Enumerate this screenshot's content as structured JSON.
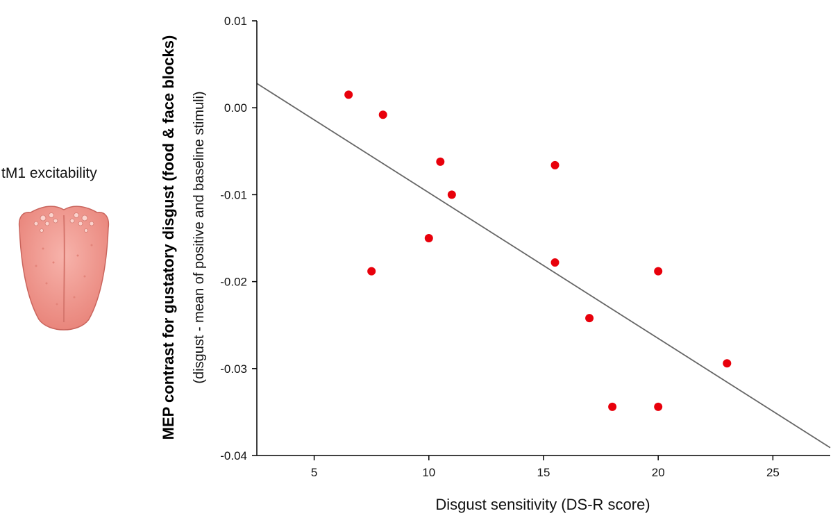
{
  "panel_label": "tM1 excitability",
  "icons": {
    "illustration": "tongue-icon"
  },
  "colors": {
    "points": "#e8000b",
    "fit_line": "#666666",
    "axis": "#000000",
    "tongue": "#f08c84"
  },
  "chart_data": {
    "type": "scatter",
    "xlabel": "Disgust sensitivity (DS-R score)",
    "ylabel": "MEP contrast for gustatory disgust (food & face blocks)",
    "ylabel_sub": "(disgust - mean of positive and baseline stimuli)",
    "xlim": [
      2.5,
      27.5
    ],
    "ylim": [
      -0.04,
      0.01
    ],
    "x_ticks": [
      5,
      10,
      15,
      20,
      25
    ],
    "x_tick_labels": [
      "5",
      "10",
      "15",
      "20",
      "25"
    ],
    "y_ticks": [
      0.01,
      0.0,
      -0.01,
      -0.02,
      -0.03,
      -0.04
    ],
    "y_tick_labels": [
      "0.01",
      "0.00",
      "-0.01",
      "-0.02",
      "-0.03",
      "-0.04"
    ],
    "grid": false,
    "legend": "none",
    "points": [
      {
        "x": 6.5,
        "y": 0.0015
      },
      {
        "x": 8.0,
        "y": -0.0008
      },
      {
        "x": 10.5,
        "y": -0.0062
      },
      {
        "x": 15.5,
        "y": -0.0066
      },
      {
        "x": 11.0,
        "y": -0.01
      },
      {
        "x": 10.0,
        "y": -0.015
      },
      {
        "x": 7.5,
        "y": -0.0188
      },
      {
        "x": 15.5,
        "y": -0.0178
      },
      {
        "x": 20.0,
        "y": -0.0188
      },
      {
        "x": 17.0,
        "y": -0.0242
      },
      {
        "x": 23.0,
        "y": -0.0294
      },
      {
        "x": 18.0,
        "y": -0.0344
      },
      {
        "x": 20.0,
        "y": -0.0344
      }
    ],
    "fit_line": {
      "x": [
        2.5,
        27.5
      ],
      "y": [
        0.0028,
        -0.0391
      ]
    }
  }
}
